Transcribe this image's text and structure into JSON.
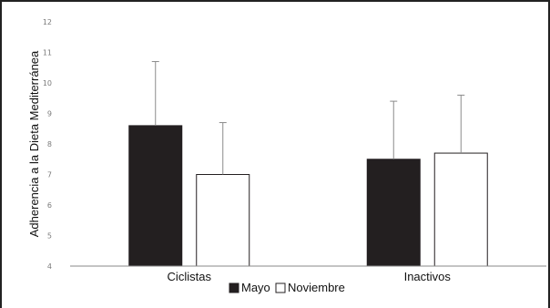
{
  "chart_data": {
    "type": "bar",
    "title": "",
    "xlabel": "",
    "ylabel": "Adherencia a la Dieta Mediterránea",
    "ylim": [
      4,
      12
    ],
    "yticks": [
      4,
      5,
      6,
      7,
      8,
      9,
      10,
      11,
      12
    ],
    "grid": false,
    "legend_position": "bottom",
    "categories": [
      "Ciclistas",
      "Inactivos"
    ],
    "series": [
      {
        "name": "Mayo",
        "values": [
          8.6,
          7.5
        ],
        "error": [
          2.1,
          1.9
        ],
        "color": "#231f20"
      },
      {
        "name": "Noviembre",
        "values": [
          7.0,
          7.7
        ],
        "error": [
          1.7,
          1.9
        ],
        "color": "#ffffff"
      }
    ]
  }
}
